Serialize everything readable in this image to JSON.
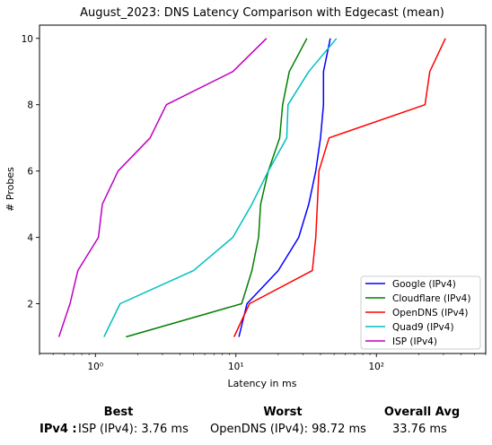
{
  "chart_data": {
    "type": "line",
    "title": "August_2023: DNS Latency Comparison with Edgecast (mean)",
    "xlabel": "Latency in ms",
    "ylabel": "# Probes",
    "x_scale": "log",
    "xlim": [
      0.4,
      600
    ],
    "ylim": [
      0.5,
      10.4
    ],
    "x_ticks": [
      1,
      10,
      100
    ],
    "x_tick_labels": [
      "10⁰",
      "10¹",
      "10²"
    ],
    "y_ticks": [
      2,
      4,
      6,
      8,
      10
    ],
    "y_tick_labels": [
      "2",
      "4",
      "6",
      "8",
      "10"
    ],
    "grid": false,
    "legend_position": "lower-right",
    "series": [
      {
        "name": "Google (IPv4)",
        "color": "#0000ff",
        "points": [
          [
            10.5,
            1
          ],
          [
            12,
            2
          ],
          [
            20,
            3
          ],
          [
            28,
            4
          ],
          [
            33,
            5
          ],
          [
            37,
            6
          ],
          [
            40,
            7
          ],
          [
            42,
            8
          ],
          [
            42,
            9
          ],
          [
            47,
            10
          ]
        ]
      },
      {
        "name": "Cloudflare (IPv4)",
        "color": "#008000",
        "points": [
          [
            1.65,
            1
          ],
          [
            11,
            2
          ],
          [
            13,
            3
          ],
          [
            14.5,
            4
          ],
          [
            15,
            5
          ],
          [
            17,
            6
          ],
          [
            20.5,
            7
          ],
          [
            21.5,
            8
          ],
          [
            24,
            9
          ],
          [
            32,
            10
          ]
        ]
      },
      {
        "name": "OpenDNS (IPv4)",
        "color": "#ff0000",
        "points": [
          [
            9.7,
            1
          ],
          [
            12.5,
            2
          ],
          [
            35,
            3
          ],
          [
            37,
            4
          ],
          [
            38,
            5
          ],
          [
            39,
            6
          ],
          [
            46,
            7
          ],
          [
            222,
            8
          ],
          [
            240,
            9
          ],
          [
            310,
            10
          ]
        ]
      },
      {
        "name": "Quad9 (IPv4)",
        "color": "#00bfbf",
        "points": [
          [
            1.15,
            1
          ],
          [
            1.5,
            2
          ],
          [
            5,
            3
          ],
          [
            9.5,
            4
          ],
          [
            13,
            5
          ],
          [
            17,
            6
          ],
          [
            23,
            7
          ],
          [
            23.5,
            8
          ],
          [
            33,
            9
          ],
          [
            52,
            10
          ]
        ]
      },
      {
        "name": "ISP (IPv4)",
        "color": "#bf00bf",
        "points": [
          [
            0.55,
            1
          ],
          [
            0.66,
            2
          ],
          [
            0.75,
            3
          ],
          [
            1.05,
            4
          ],
          [
            1.12,
            5
          ],
          [
            1.45,
            6
          ],
          [
            2.45,
            7
          ],
          [
            3.2,
            8
          ],
          [
            9.5,
            9
          ],
          [
            16.5,
            10
          ]
        ]
      }
    ]
  },
  "summary": {
    "best_header": "Best",
    "worst_header": "Worst",
    "avg_header": "Overall Avg",
    "row_label": "IPv4 :",
    "best": "ISP (IPv4): 3.76 ms",
    "worst": "OpenDNS (IPv4): 98.72 ms",
    "avg": "33.76 ms"
  }
}
